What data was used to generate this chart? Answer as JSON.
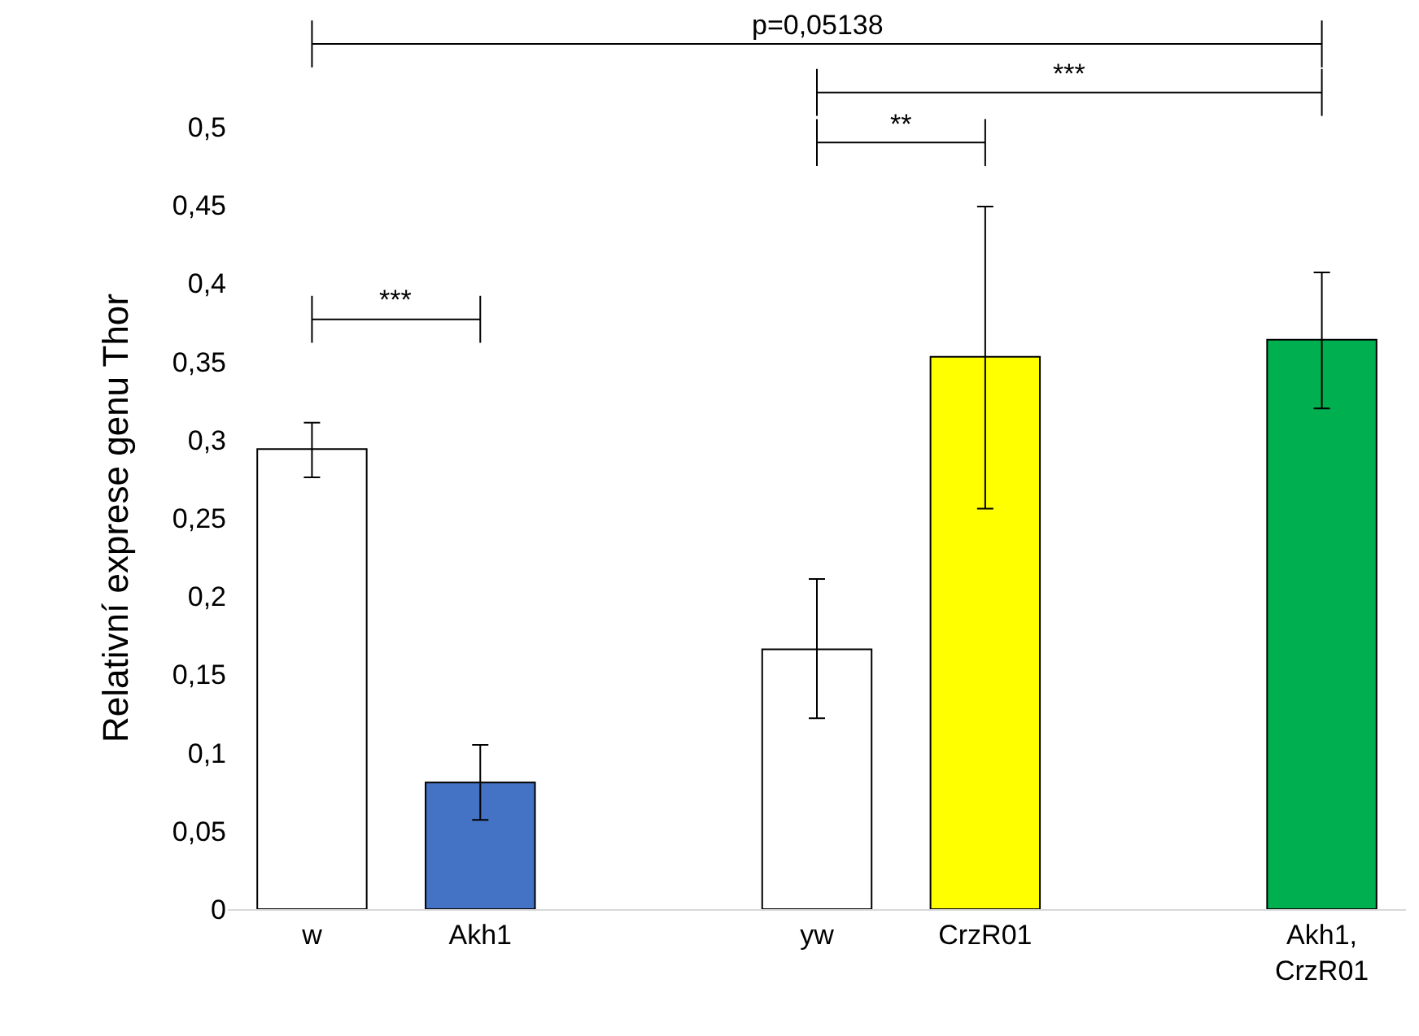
{
  "chart_data": {
    "type": "bar",
    "ylabel": "Relativní exprese genu Thor",
    "categories": [
      "w",
      "Akh1",
      null,
      "yw",
      "CrzR01",
      null,
      "Akh1, CrzR01"
    ],
    "values": [
      0.294,
      0.081,
      null,
      0.166,
      0.353,
      null,
      0.364
    ],
    "colors": [
      "#ffffff",
      "#4472c4",
      "#ffffff",
      "#ffffff",
      "#ffff00",
      "#ffffff",
      "#00b050"
    ],
    "errors": [
      [
        0.276,
        0.311
      ],
      [
        0.057,
        0.105
      ],
      null,
      [
        0.122,
        0.211
      ],
      [
        0.256,
        0.449
      ],
      null,
      [
        0.32,
        0.407
      ]
    ],
    "ylim": [
      0,
      0.5
    ],
    "yticks": [
      0,
      {
        "value": 0.05,
        "label": "0,05"
      },
      {
        "value": 0.1,
        "label": "0,1"
      },
      {
        "value": 0.15,
        "label": "0,15"
      },
      {
        "value": 0.2,
        "label": "0,2"
      },
      {
        "value": 0.25,
        "label": "0,25"
      },
      {
        "value": 0.3,
        "label": "0,3"
      },
      {
        "value": 0.35,
        "label": "0,35"
      },
      {
        "value": 0.4,
        "label": "0,4"
      },
      {
        "value": 0.45,
        "label": "0,45"
      },
      {
        "value": 0.5,
        "label": "0,5"
      }
    ],
    "grid": false,
    "legend": false,
    "annotations": [
      "p=0,05138",
      "***",
      "**",
      "***"
    ]
  }
}
